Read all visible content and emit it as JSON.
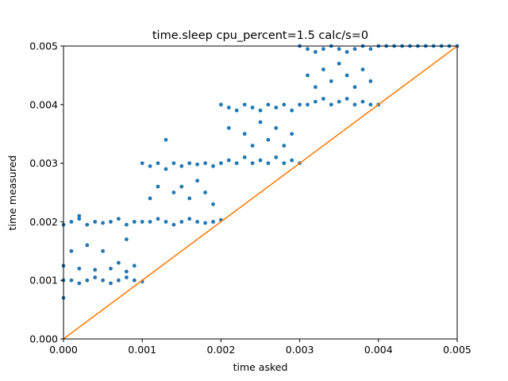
{
  "chart_data": {
    "type": "scatter",
    "title": "time.sleep cpu_percent=1.5 calc/s=0",
    "xlabel": "time asked",
    "ylabel": "time measured",
    "xlim": [
      0,
      0.005
    ],
    "ylim": [
      0,
      0.005
    ],
    "x_ticks": [
      "0.000",
      "0.001",
      "0.002",
      "0.003",
      "0.004",
      "0.005"
    ],
    "y_ticks": [
      "0.000",
      "0.001",
      "0.002",
      "0.003",
      "0.004",
      "0.005"
    ],
    "grid": false,
    "legend": "none",
    "colors": {
      "scatter": "#1f77b4",
      "line": "#ff7f0e",
      "axes": "#000000"
    },
    "series": [
      {
        "type": "scatter",
        "description_points": "measured sleep durations vs requested; clustered in steps",
        "points": [
          [
            0.0,
            0.0007
          ],
          [
            0.0,
            0.001
          ],
          [
            0.0,
            0.00125
          ],
          [
            0.0001,
            0.001
          ],
          [
            0.0002,
            0.00095
          ],
          [
            0.0003,
            0.001
          ],
          [
            0.0004,
            0.00105
          ],
          [
            0.0005,
            0.001
          ],
          [
            0.0006,
            0.00095
          ],
          [
            0.0007,
            0.001
          ],
          [
            0.0008,
            0.00105
          ],
          [
            0.0009,
            0.001
          ],
          [
            0.001,
            0.00098
          ],
          [
            0.0002,
            0.0012
          ],
          [
            0.0004,
            0.00118
          ],
          [
            0.0006,
            0.0012
          ],
          [
            0.0008,
            0.00115
          ],
          [
            0.0009,
            0.00125
          ],
          [
            0.0,
            0.00195
          ],
          [
            0.0001,
            0.002
          ],
          [
            0.0002,
            0.00205
          ],
          [
            0.0003,
            0.00195
          ],
          [
            0.0004,
            0.002
          ],
          [
            0.0005,
            0.00198
          ],
          [
            0.0006,
            0.002
          ],
          [
            0.0007,
            0.00205
          ],
          [
            0.0008,
            0.00195
          ],
          [
            0.0009,
            0.002
          ],
          [
            0.0003,
            0.0016
          ],
          [
            0.0005,
            0.0015
          ],
          [
            0.0007,
            0.0013
          ],
          [
            0.0008,
            0.0017
          ],
          [
            0.0001,
            0.0015
          ],
          [
            0.0002,
            0.0021
          ],
          [
            0.001,
            0.002
          ],
          [
            0.0011,
            0.002
          ],
          [
            0.0012,
            0.00205
          ],
          [
            0.0013,
            0.002
          ],
          [
            0.0014,
            0.00195
          ],
          [
            0.0015,
            0.002
          ],
          [
            0.0016,
            0.00205
          ],
          [
            0.0017,
            0.002
          ],
          [
            0.0018,
            0.00198
          ],
          [
            0.0019,
            0.002
          ],
          [
            0.002,
            0.00203
          ],
          [
            0.001,
            0.003
          ],
          [
            0.0011,
            0.00295
          ],
          [
            0.0012,
            0.003
          ],
          [
            0.0013,
            0.0029
          ],
          [
            0.0014,
            0.003
          ],
          [
            0.0015,
            0.00295
          ],
          [
            0.0016,
            0.003
          ],
          [
            0.0017,
            0.00298
          ],
          [
            0.0018,
            0.003
          ],
          [
            0.0019,
            0.00295
          ],
          [
            0.0012,
            0.0026
          ],
          [
            0.0013,
            0.0034
          ],
          [
            0.0014,
            0.0025
          ],
          [
            0.0015,
            0.0026
          ],
          [
            0.0016,
            0.0024
          ],
          [
            0.0017,
            0.0027
          ],
          [
            0.0018,
            0.0025
          ],
          [
            0.0019,
            0.0023
          ],
          [
            0.0011,
            0.0024
          ],
          [
            0.002,
            0.003
          ],
          [
            0.0021,
            0.00305
          ],
          [
            0.0022,
            0.003
          ],
          [
            0.0023,
            0.0031
          ],
          [
            0.0024,
            0.003
          ],
          [
            0.0025,
            0.00305
          ],
          [
            0.0026,
            0.003
          ],
          [
            0.0027,
            0.0031
          ],
          [
            0.0028,
            0.003
          ],
          [
            0.0029,
            0.00305
          ],
          [
            0.003,
            0.003
          ],
          [
            0.002,
            0.004
          ],
          [
            0.0021,
            0.00395
          ],
          [
            0.0022,
            0.0039
          ],
          [
            0.0023,
            0.004
          ],
          [
            0.0024,
            0.00395
          ],
          [
            0.0025,
            0.0039
          ],
          [
            0.0026,
            0.004
          ],
          [
            0.0027,
            0.00395
          ],
          [
            0.0028,
            0.004
          ],
          [
            0.0029,
            0.0039
          ],
          [
            0.0021,
            0.0036
          ],
          [
            0.0023,
            0.0035
          ],
          [
            0.0024,
            0.0033
          ],
          [
            0.0025,
            0.0037
          ],
          [
            0.0026,
            0.0034
          ],
          [
            0.0027,
            0.0036
          ],
          [
            0.0028,
            0.0033
          ],
          [
            0.0029,
            0.0035
          ],
          [
            0.003,
            0.004
          ],
          [
            0.0031,
            0.004
          ],
          [
            0.0032,
            0.00405
          ],
          [
            0.0033,
            0.0041
          ],
          [
            0.0034,
            0.004
          ],
          [
            0.0035,
            0.00405
          ],
          [
            0.0036,
            0.0041
          ],
          [
            0.0037,
            0.004
          ],
          [
            0.0038,
            0.00405
          ],
          [
            0.0039,
            0.004
          ],
          [
            0.004,
            0.004
          ],
          [
            0.003,
            0.005
          ],
          [
            0.0031,
            0.00495
          ],
          [
            0.0032,
            0.0049
          ],
          [
            0.0033,
            0.00495
          ],
          [
            0.0034,
            0.005
          ],
          [
            0.0035,
            0.00495
          ],
          [
            0.0036,
            0.0049
          ],
          [
            0.0037,
            0.00495
          ],
          [
            0.0038,
            0.005
          ],
          [
            0.0039,
            0.00495
          ],
          [
            0.0031,
            0.0045
          ],
          [
            0.0032,
            0.0043
          ],
          [
            0.0033,
            0.0046
          ],
          [
            0.0034,
            0.0044
          ],
          [
            0.0035,
            0.0047
          ],
          [
            0.0036,
            0.0045
          ],
          [
            0.0037,
            0.0043
          ],
          [
            0.0038,
            0.0046
          ],
          [
            0.0039,
            0.0044
          ],
          [
            0.004,
            0.005
          ],
          [
            0.0041,
            0.005
          ],
          [
            0.0042,
            0.005
          ],
          [
            0.0043,
            0.005
          ],
          [
            0.0044,
            0.005
          ],
          [
            0.0045,
            0.005
          ],
          [
            0.0046,
            0.005
          ],
          [
            0.0047,
            0.005
          ],
          [
            0.0048,
            0.005
          ],
          [
            0.0049,
            0.005
          ],
          [
            0.005,
            0.005
          ]
        ]
      },
      {
        "type": "line",
        "points": [
          [
            0,
            0
          ],
          [
            0.005,
            0.005
          ]
        ]
      }
    ]
  }
}
